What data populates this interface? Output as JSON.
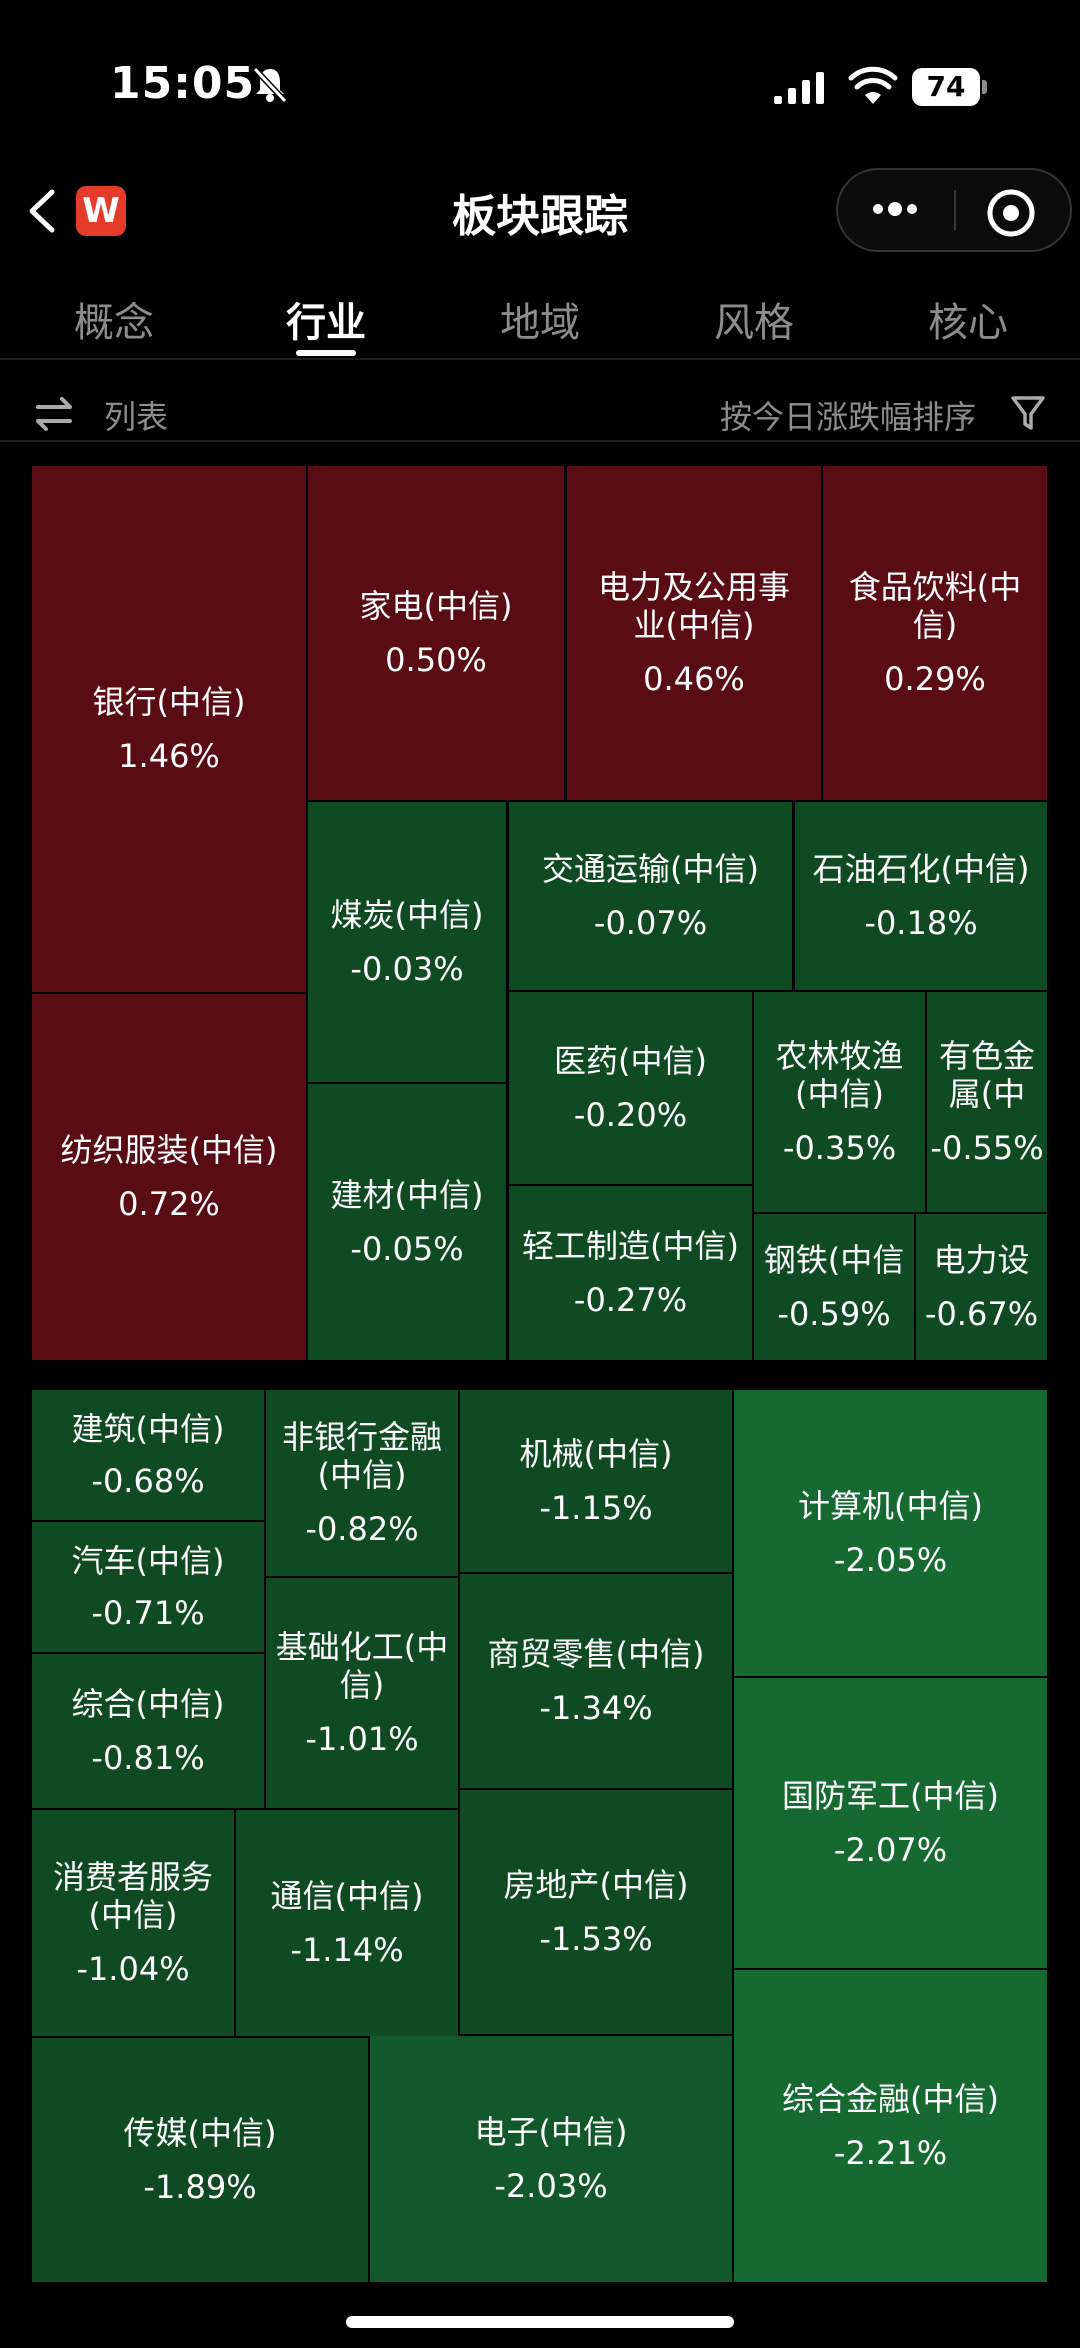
{
  "status": {
    "time": "15:05",
    "battery": "74"
  },
  "header": {
    "title": "板块跟踪",
    "logo_letter": "W"
  },
  "tabs": [
    "概念",
    "行业",
    "地域",
    "风格",
    "核心"
  ],
  "toolbar": {
    "list_label": "列表",
    "sort_label": "按今日涨跌幅排序"
  },
  "colors": {
    "up": "#5a0c14",
    "down_dark": "#0f4a23",
    "down_mid": "#13582a",
    "down_light": "#166a31"
  },
  "sectors": [
    {
      "name": "银行(中信)",
      "change": "1.46%"
    },
    {
      "name": "纺织服装(中信)",
      "change": "0.72%"
    },
    {
      "name": "家电(中信)",
      "change": "0.50%"
    },
    {
      "name": "电力及公用事业(中信)",
      "change": "0.46%"
    },
    {
      "name": "食品饮料(中信)",
      "change": "0.29%"
    },
    {
      "name": "煤炭(中信)",
      "change": "-0.03%"
    },
    {
      "name": "建材(中信)",
      "change": "-0.05%"
    },
    {
      "name": "交通运输(中信)",
      "change": "-0.07%"
    },
    {
      "name": "石油石化(中信)",
      "change": "-0.18%"
    },
    {
      "name": "医药(中信)",
      "change": "-0.20%"
    },
    {
      "name": "农林牧渔(中信)",
      "change": "-0.35%"
    },
    {
      "name": "有色金属(中",
      "change": "-0.55%"
    },
    {
      "name": "轻工制造(中信)",
      "change": "-0.27%"
    },
    {
      "name": "钢铁(中信",
      "change": "-0.59%"
    },
    {
      "name": "电力设",
      "change": "-0.67%"
    },
    {
      "name": "建筑(中信)",
      "change": "-0.68%"
    },
    {
      "name": "汽车(中信)",
      "change": "-0.71%"
    },
    {
      "name": "综合(中信)",
      "change": "-0.81%"
    },
    {
      "name": "非银行金融(中信)",
      "change": "-0.82%"
    },
    {
      "name": "基础化工(中信)",
      "change": "-1.01%"
    },
    {
      "name": "消费者服务(中信)",
      "change": "-1.04%"
    },
    {
      "name": "通信(中信)",
      "change": "-1.14%"
    },
    {
      "name": "机械(中信)",
      "change": "-1.15%"
    },
    {
      "name": "商贸零售(中信)",
      "change": "-1.34%"
    },
    {
      "name": "房地产(中信)",
      "change": "-1.53%"
    },
    {
      "name": "传媒(中信)",
      "change": "-1.89%"
    },
    {
      "name": "电子(中信)",
      "change": "-2.03%"
    },
    {
      "name": "计算机(中信)",
      "change": "-2.05%"
    },
    {
      "name": "国防军工(中信)",
      "change": "-2.07%"
    },
    {
      "name": "综合金融(中信)",
      "change": "-2.21%"
    }
  ]
}
